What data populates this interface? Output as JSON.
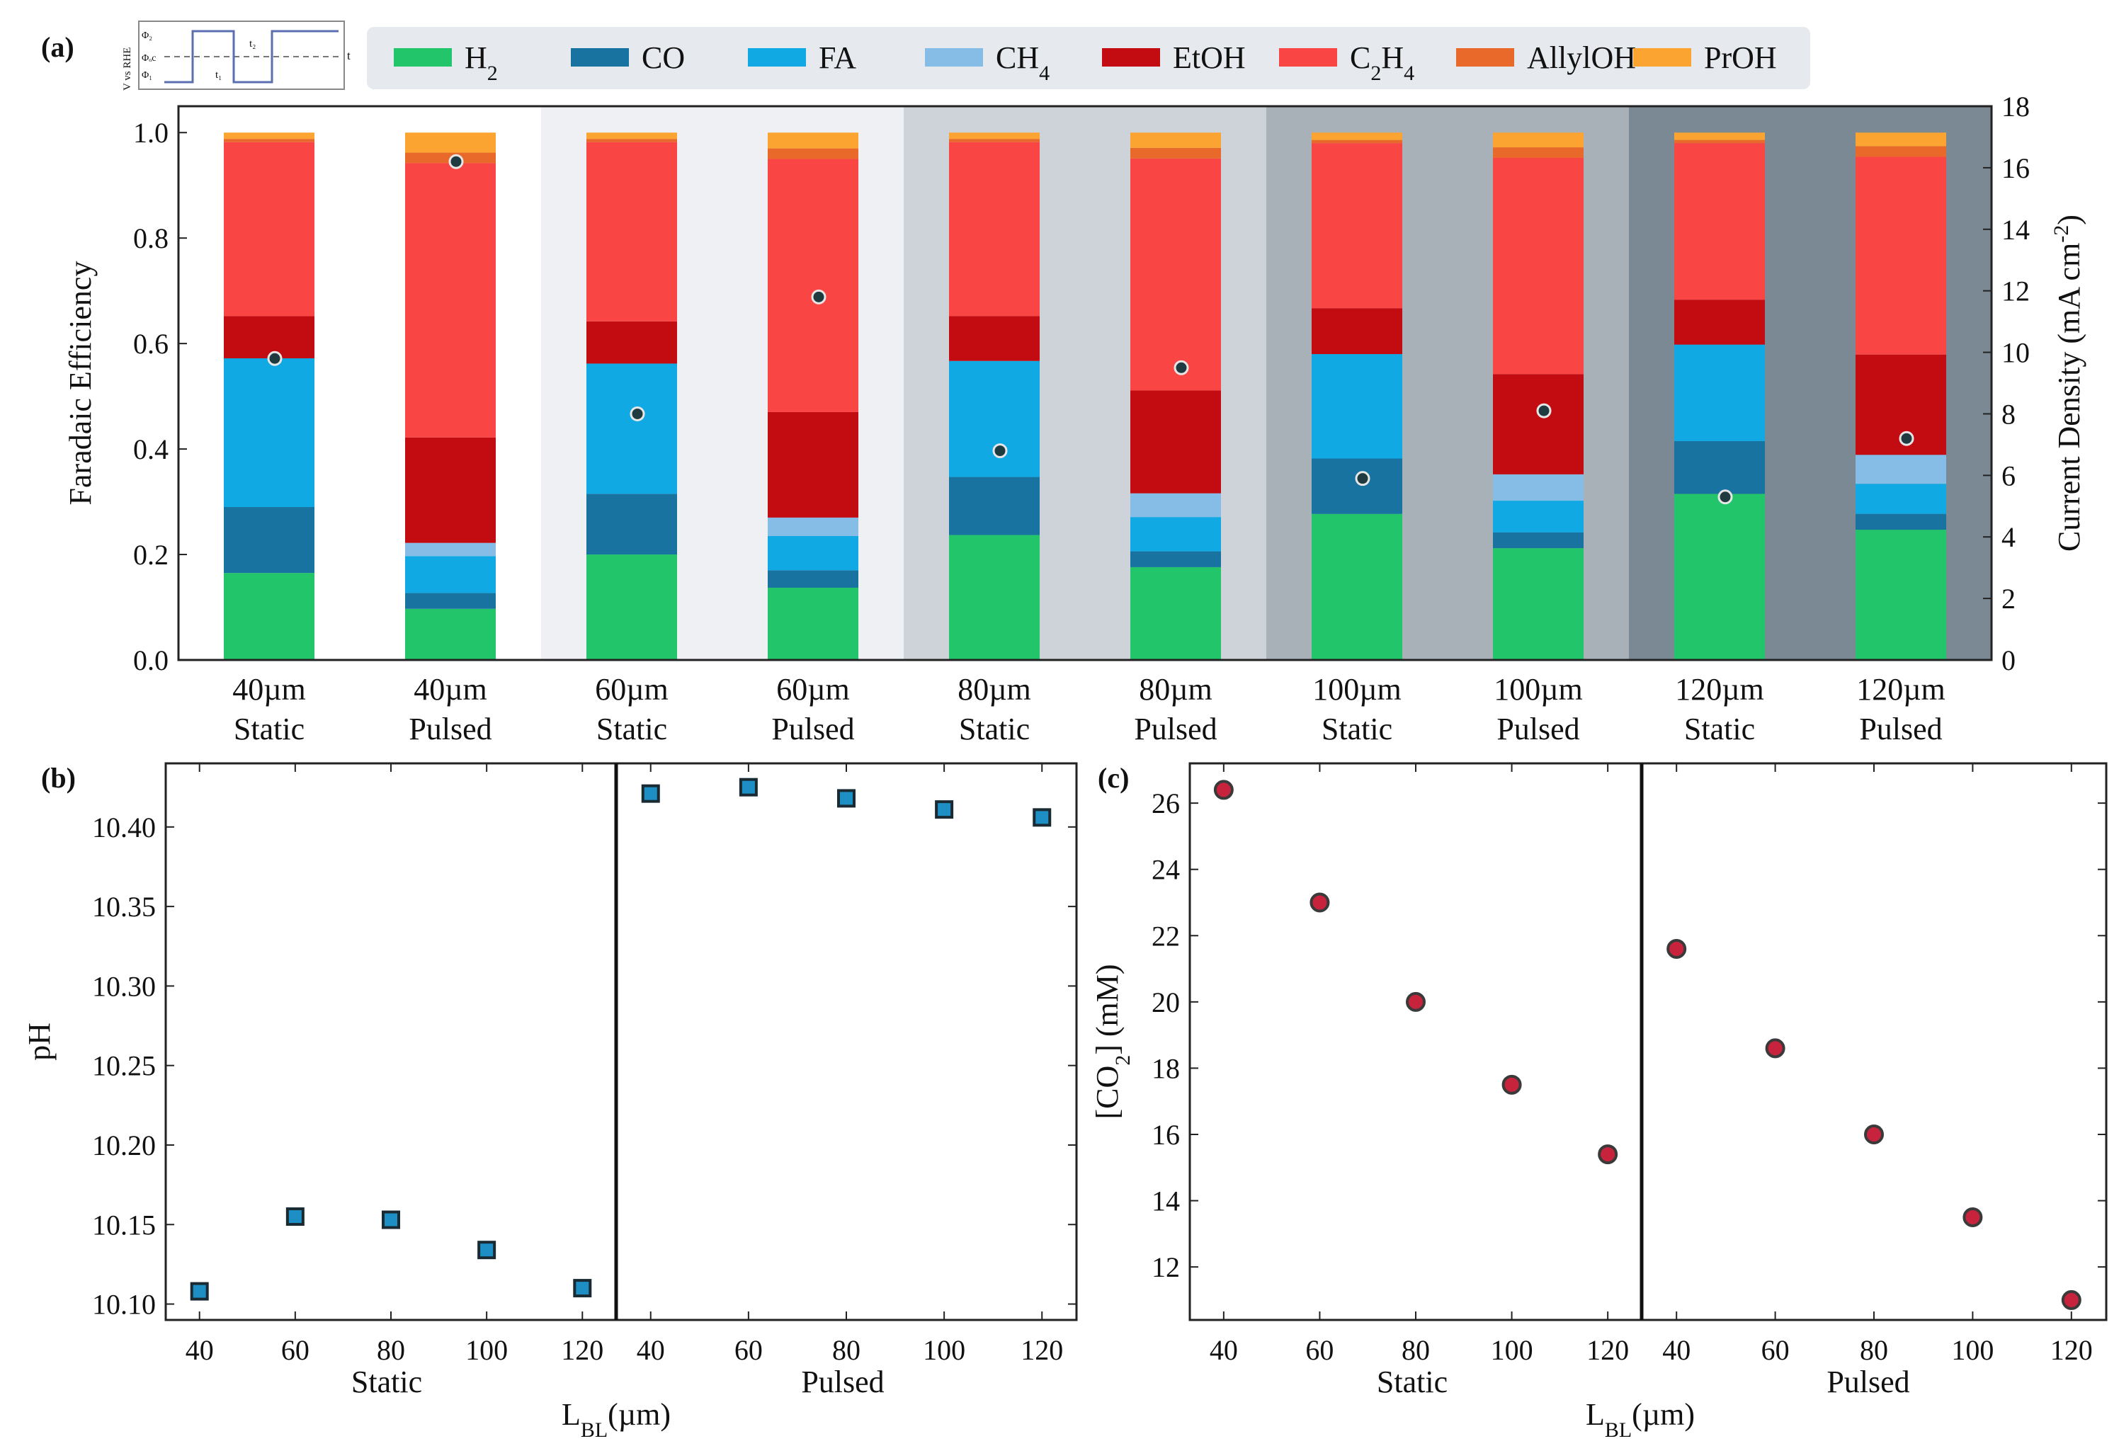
{
  "panel_labels": {
    "a": "(a)",
    "b": "(b)",
    "c": "(c)"
  },
  "inset": {
    "ylabel": "V vs RHE",
    "phi2": "Φ₂",
    "phi_oc": "Φₒc",
    "phi1": "Φ₁",
    "t1": "t₁",
    "t2": "t₂",
    "t": "t"
  },
  "colors": {
    "H2": "#22c56a",
    "CO": "#1873a0",
    "FA": "#10a9e3",
    "CH4": "#86bde6",
    "EtOH": "#c20c12",
    "C2H4": "#fa4545",
    "AllylOH": "#e8692a",
    "PrOH": "#fba431",
    "bg1": "#ffffff",
    "bg2": "#eef0f4",
    "bg3": "#cdd3d8",
    "bg4": "#a8b0b8",
    "bg5": "#7b8994",
    "marker_b": "#1e8fc4",
    "marker_c": "#c8233d"
  },
  "chart_data": [
    {
      "panel": "(a)",
      "type": "bar",
      "stacked": true,
      "legend_placement": "top",
      "legend": [
        {
          "key": "H2",
          "main": "H",
          "sub": "2",
          "rest": ""
        },
        {
          "key": "CO",
          "main": "CO",
          "sub": "",
          "rest": ""
        },
        {
          "key": "FA",
          "main": "FA",
          "sub": "",
          "rest": ""
        },
        {
          "key": "CH4",
          "main": "CH",
          "sub": "4",
          "rest": ""
        },
        {
          "key": "EtOH",
          "main": "EtOH",
          "sub": "",
          "rest": ""
        },
        {
          "key": "C2H4",
          "main": "C",
          "sub": "2",
          "rest": "H",
          "sub2": "4"
        },
        {
          "key": "AllylOH",
          "main": "AllylOH",
          "sub": "",
          "rest": ""
        },
        {
          "key": "PrOH",
          "main": "PrOH",
          "sub": "",
          "rest": ""
        }
      ],
      "categories": [
        [
          "40µm",
          "Static"
        ],
        [
          "40µm",
          "Pulsed"
        ],
        [
          "60µm",
          "Static"
        ],
        [
          "60µm",
          "Pulsed"
        ],
        [
          "80µm",
          "Static"
        ],
        [
          "80µm",
          "Pulsed"
        ],
        [
          "100µm",
          "Static"
        ],
        [
          "100µm",
          "Pulsed"
        ],
        [
          "120µm",
          "Static"
        ],
        [
          "120µm",
          "Pulsed"
        ]
      ],
      "series": [
        {
          "name": "H2",
          "values": [
            0.165,
            0.097,
            0.2,
            0.137,
            0.237,
            0.176,
            0.277,
            0.212,
            0.315,
            0.247
          ]
        },
        {
          "name": "CO",
          "values": [
            0.125,
            0.03,
            0.115,
            0.033,
            0.11,
            0.03,
            0.105,
            0.03,
            0.1,
            0.03
          ]
        },
        {
          "name": "FA",
          "values": [
            0.282,
            0.07,
            0.247,
            0.065,
            0.22,
            0.065,
            0.198,
            0.06,
            0.183,
            0.057
          ]
        },
        {
          "name": "CH4",
          "values": [
            0.0,
            0.025,
            0.0,
            0.035,
            0.0,
            0.045,
            0.0,
            0.05,
            0.0,
            0.055
          ]
        },
        {
          "name": "EtOH",
          "values": [
            0.08,
            0.2,
            0.08,
            0.2,
            0.085,
            0.195,
            0.087,
            0.19,
            0.085,
            0.19
          ]
        },
        {
          "name": "C2H4",
          "values": [
            0.33,
            0.52,
            0.34,
            0.48,
            0.33,
            0.44,
            0.313,
            0.41,
            0.297,
            0.375
          ]
        },
        {
          "name": "AllylOH",
          "values": [
            0.006,
            0.02,
            0.006,
            0.02,
            0.006,
            0.02,
            0.006,
            0.02,
            0.006,
            0.02
          ]
        },
        {
          "name": "PrOH",
          "values": [
            0.012,
            0.038,
            0.012,
            0.03,
            0.012,
            0.029,
            0.014,
            0.028,
            0.014,
            0.026
          ]
        }
      ],
      "current_density": [
        9.8,
        16.2,
        8.0,
        11.8,
        6.8,
        9.5,
        5.9,
        8.1,
        5.3,
        7.2
      ],
      "ylabel": "Faradaic Efficiency",
      "ylabel2_main": "Current Density (mA cm",
      "ylabel2_sup": "-2",
      "ylabel2_end": ")",
      "ylim": [
        0,
        1.05
      ],
      "y2lim": [
        0,
        18
      ],
      "yticks": [
        0.0,
        0.2,
        0.4,
        0.6,
        0.8,
        1.0
      ],
      "yticklabels": [
        "0.0",
        "0.2",
        "0.4",
        "0.6",
        "0.8",
        "1.0"
      ],
      "y2ticks": [
        0,
        2,
        4,
        6,
        8,
        10,
        12,
        14,
        16,
        18
      ],
      "y2ticklabels": [
        "0",
        "2",
        "4",
        "6",
        "8",
        "10",
        "12",
        "14",
        "16",
        "18"
      ]
    },
    {
      "panel": "(b)",
      "type": "scatter",
      "marker": "square",
      "groups": [
        "Static",
        "Pulsed"
      ],
      "x": [
        40,
        60,
        80,
        100,
        120
      ],
      "xticklabels": [
        "40",
        "60",
        "80",
        "100",
        "120"
      ],
      "series": [
        {
          "name": "Static",
          "values": [
            10.108,
            10.155,
            10.153,
            10.134,
            10.11
          ]
        },
        {
          "name": "Pulsed",
          "values": [
            10.421,
            10.425,
            10.418,
            10.411,
            10.406
          ]
        }
      ],
      "ylabel": "pH",
      "xlabel_main": "L",
      "xlabel_sub": "BL",
      "xlabel_end": "(µm)",
      "ylim": [
        10.09,
        10.44
      ],
      "yticks": [
        10.1,
        10.15,
        10.2,
        10.25,
        10.3,
        10.35,
        10.4
      ],
      "yticklabels": [
        "10.10",
        "10.15",
        "10.20",
        "10.25",
        "10.30",
        "10.35",
        "10.40"
      ]
    },
    {
      "panel": "(c)",
      "type": "scatter",
      "marker": "circle",
      "groups": [
        "Static",
        "Pulsed"
      ],
      "x": [
        40,
        60,
        80,
        100,
        120
      ],
      "xticklabels": [
        "40",
        "60",
        "80",
        "100",
        "120"
      ],
      "series": [
        {
          "name": "Static",
          "values": [
            26.4,
            23.0,
            20.0,
            17.5,
            15.4
          ]
        },
        {
          "name": "Pulsed",
          "values": [
            21.6,
            18.6,
            16.0,
            13.5,
            11.0
          ]
        }
      ],
      "ylabel_main": "[CO",
      "ylabel_sub": "2",
      "ylabel_end": "] (mM)",
      "xlabel_main": "L",
      "xlabel_sub": "BL",
      "xlabel_end": "(µm)",
      "ylim": [
        10.4,
        27.2
      ],
      "yticks": [
        12,
        14,
        16,
        18,
        20,
        22,
        24,
        26
      ],
      "yticklabels": [
        "12",
        "14",
        "16",
        "18",
        "20",
        "22",
        "24",
        "26"
      ]
    }
  ]
}
